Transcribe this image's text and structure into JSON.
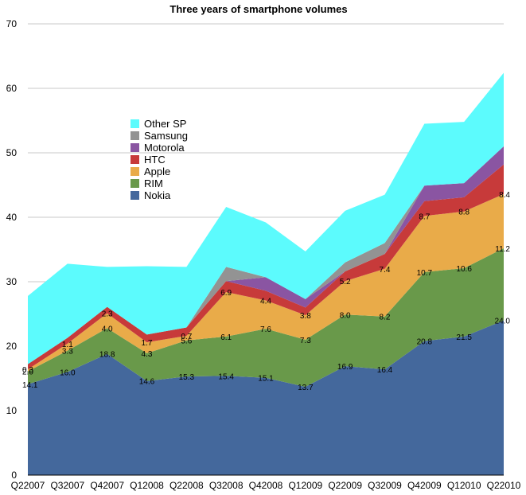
{
  "chart_data": {
    "type": "area",
    "stacked": true,
    "title": "Three years of smartphone volumes",
    "xlabel": "",
    "ylabel": "",
    "ylim": [
      0,
      70
    ],
    "yticks": [
      0,
      10,
      20,
      30,
      40,
      50,
      60,
      70
    ],
    "grid": true,
    "legend_position": "left-center",
    "categories": [
      "Q22007",
      "Q32007",
      "Q42007",
      "Q12008",
      "Q22008",
      "Q32008",
      "Q42008",
      "Q12009",
      "Q22009",
      "Q32009",
      "Q42009",
      "Q12010",
      "Q22010"
    ],
    "series": [
      {
        "name": "Nokia",
        "color": "#44689c",
        "values": [
          14.1,
          16.0,
          18.8,
          14.6,
          15.3,
          15.4,
          15.1,
          13.7,
          16.9,
          16.4,
          20.8,
          21.5,
          24.0
        ],
        "labels": [
          "14.1",
          "16.0",
          "18.8",
          "14.6",
          "15.3",
          "15.4",
          "15.1",
          "13.7",
          "16.9",
          "16.4",
          "20.8",
          "21.5",
          "24.0"
        ]
      },
      {
        "name": "RIM",
        "color": "#69994a",
        "values": [
          2.0,
          3.3,
          4.0,
          4.3,
          5.6,
          6.1,
          7.6,
          7.3,
          8.0,
          8.2,
          10.7,
          10.6,
          11.2
        ],
        "labels": [
          "2.0",
          "3.3",
          "4.0",
          "4.3",
          "5.6",
          "6.1",
          "7.6",
          "7.3",
          "8.0",
          "8.2",
          "10.7",
          "10.6",
          "11.2"
        ]
      },
      {
        "name": "Apple",
        "color": "#e9ab49",
        "values": [
          0.3,
          1.1,
          2.3,
          1.7,
          0.7,
          6.9,
          4.4,
          3.8,
          5.2,
          7.4,
          8.7,
          8.8,
          8.4
        ],
        "labels": [
          "0.3",
          "1.1",
          "2.3",
          "1.7",
          "0.7",
          "6.9",
          "4.4",
          "3.8",
          "5.2",
          "7.4",
          "8.7",
          "8.8",
          "8.4"
        ]
      },
      {
        "name": "HTC",
        "color": "#c73a3a",
        "values": [
          0.8,
          0.9,
          1.0,
          1.2,
          1.3,
          1.7,
          1.5,
          1.2,
          1.5,
          2.3,
          2.3,
          2.2,
          4.6
        ]
      },
      {
        "name": "Motorola",
        "color": "#8a55a2",
        "values": [
          0,
          0,
          0,
          0,
          0,
          0,
          2.1,
          1.3,
          0,
          0,
          2.4,
          2.2,
          2.8
        ]
      },
      {
        "name": "Samsung",
        "color": "#939393",
        "values": [
          0,
          0,
          0,
          0,
          0,
          2.2,
          0,
          0,
          1.4,
          1.7,
          0,
          0,
          0
        ]
      },
      {
        "name": "Other SP",
        "color": "#5cfbfd",
        "values": [
          10.6,
          11.5,
          6.2,
          10.6,
          9.4,
          9.3,
          8.5,
          7.4,
          8.0,
          7.5,
          9.6,
          9.5,
          11.4
        ]
      }
    ],
    "legend_order": [
      "Other SP",
      "Samsung",
      "Motorola",
      "HTC",
      "Apple",
      "RIM",
      "Nokia"
    ]
  }
}
